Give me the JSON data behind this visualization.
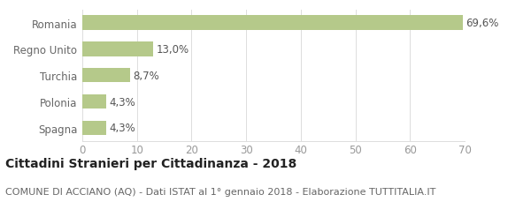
{
  "categories": [
    "Spagna",
    "Polonia",
    "Turchia",
    "Regno Unito",
    "Romania"
  ],
  "values": [
    4.3,
    4.3,
    8.7,
    13.0,
    69.6
  ],
  "labels": [
    "4,3%",
    "4,3%",
    "8,7%",
    "13,0%",
    "69,6%"
  ],
  "bar_color": "#b5c98a",
  "background_color": "#ffffff",
  "title": "Cittadini Stranieri per Cittadinanza - 2018",
  "subtitle": "COMUNE DI ACCIANO (AQ) - Dati ISTAT al 1° gennaio 2018 - Elaborazione TUTTITALIA.IT",
  "title_fontsize": 10,
  "subtitle_fontsize": 8,
  "xlim": [
    0,
    70
  ],
  "xticks": [
    0,
    10,
    20,
    30,
    40,
    50,
    60,
    70
  ],
  "grid_color": "#dddddd",
  "tick_label_fontsize": 8.5,
  "bar_label_fontsize": 8.5,
  "bar_label_color": "#555555",
  "y_label_color": "#666666",
  "x_tick_color": "#999999"
}
